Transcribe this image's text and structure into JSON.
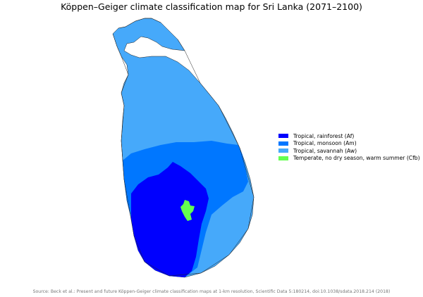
{
  "title": "Köppen–Geiger climate classification map for Sri Lanka (2071–2100)",
  "legend": [
    {
      "label": "Tropical, rainforest (Af)",
      "color": "#0000fe"
    },
    {
      "label": "Tropical, monsoon (Am)",
      "color": "#0077ff"
    },
    {
      "label": "Tropical, savannah (Aw)",
      "color": "#46a9fa"
    },
    {
      "label": "Temperate, no dry season, warm summer (Cfb)",
      "color": "#64ff50"
    }
  ],
  "source": "Source: Beck et al.: Present and future Köppen-Geiger climate classification maps at 1-km resolution, Scientific Data 5:180214, doi:10.1038/sdata.2018.214 (2018)"
}
